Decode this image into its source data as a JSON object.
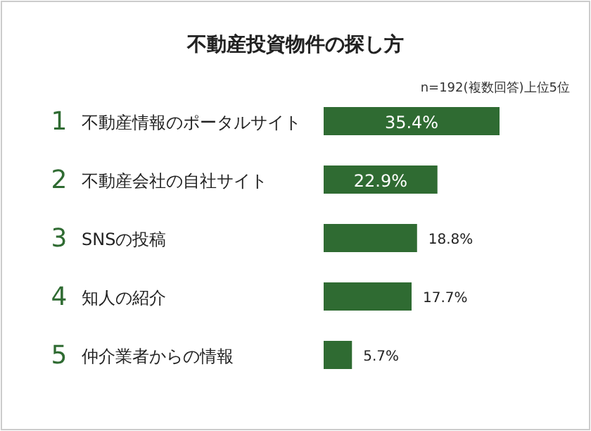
{
  "chart_data": {
    "type": "bar",
    "orientation": "horizontal",
    "title": "不動産投資物件の探し方",
    "annotations": [
      "n=192(複数回答)上位5位"
    ],
    "categories": [
      "1 不動産情報のポータルサイト",
      "2 不動産会社の自社サイト",
      "3 SNSの投稿",
      "4 知人の紹介",
      "5 仲介業者からの情報"
    ],
    "values": [
      35.4,
      22.9,
      18.8,
      17.7,
      5.7
    ],
    "value_labels": [
      "35.4%",
      "22.9%",
      "18.8%",
      "17.7%",
      "5.7%"
    ],
    "color": "#2f6b32"
  }
}
